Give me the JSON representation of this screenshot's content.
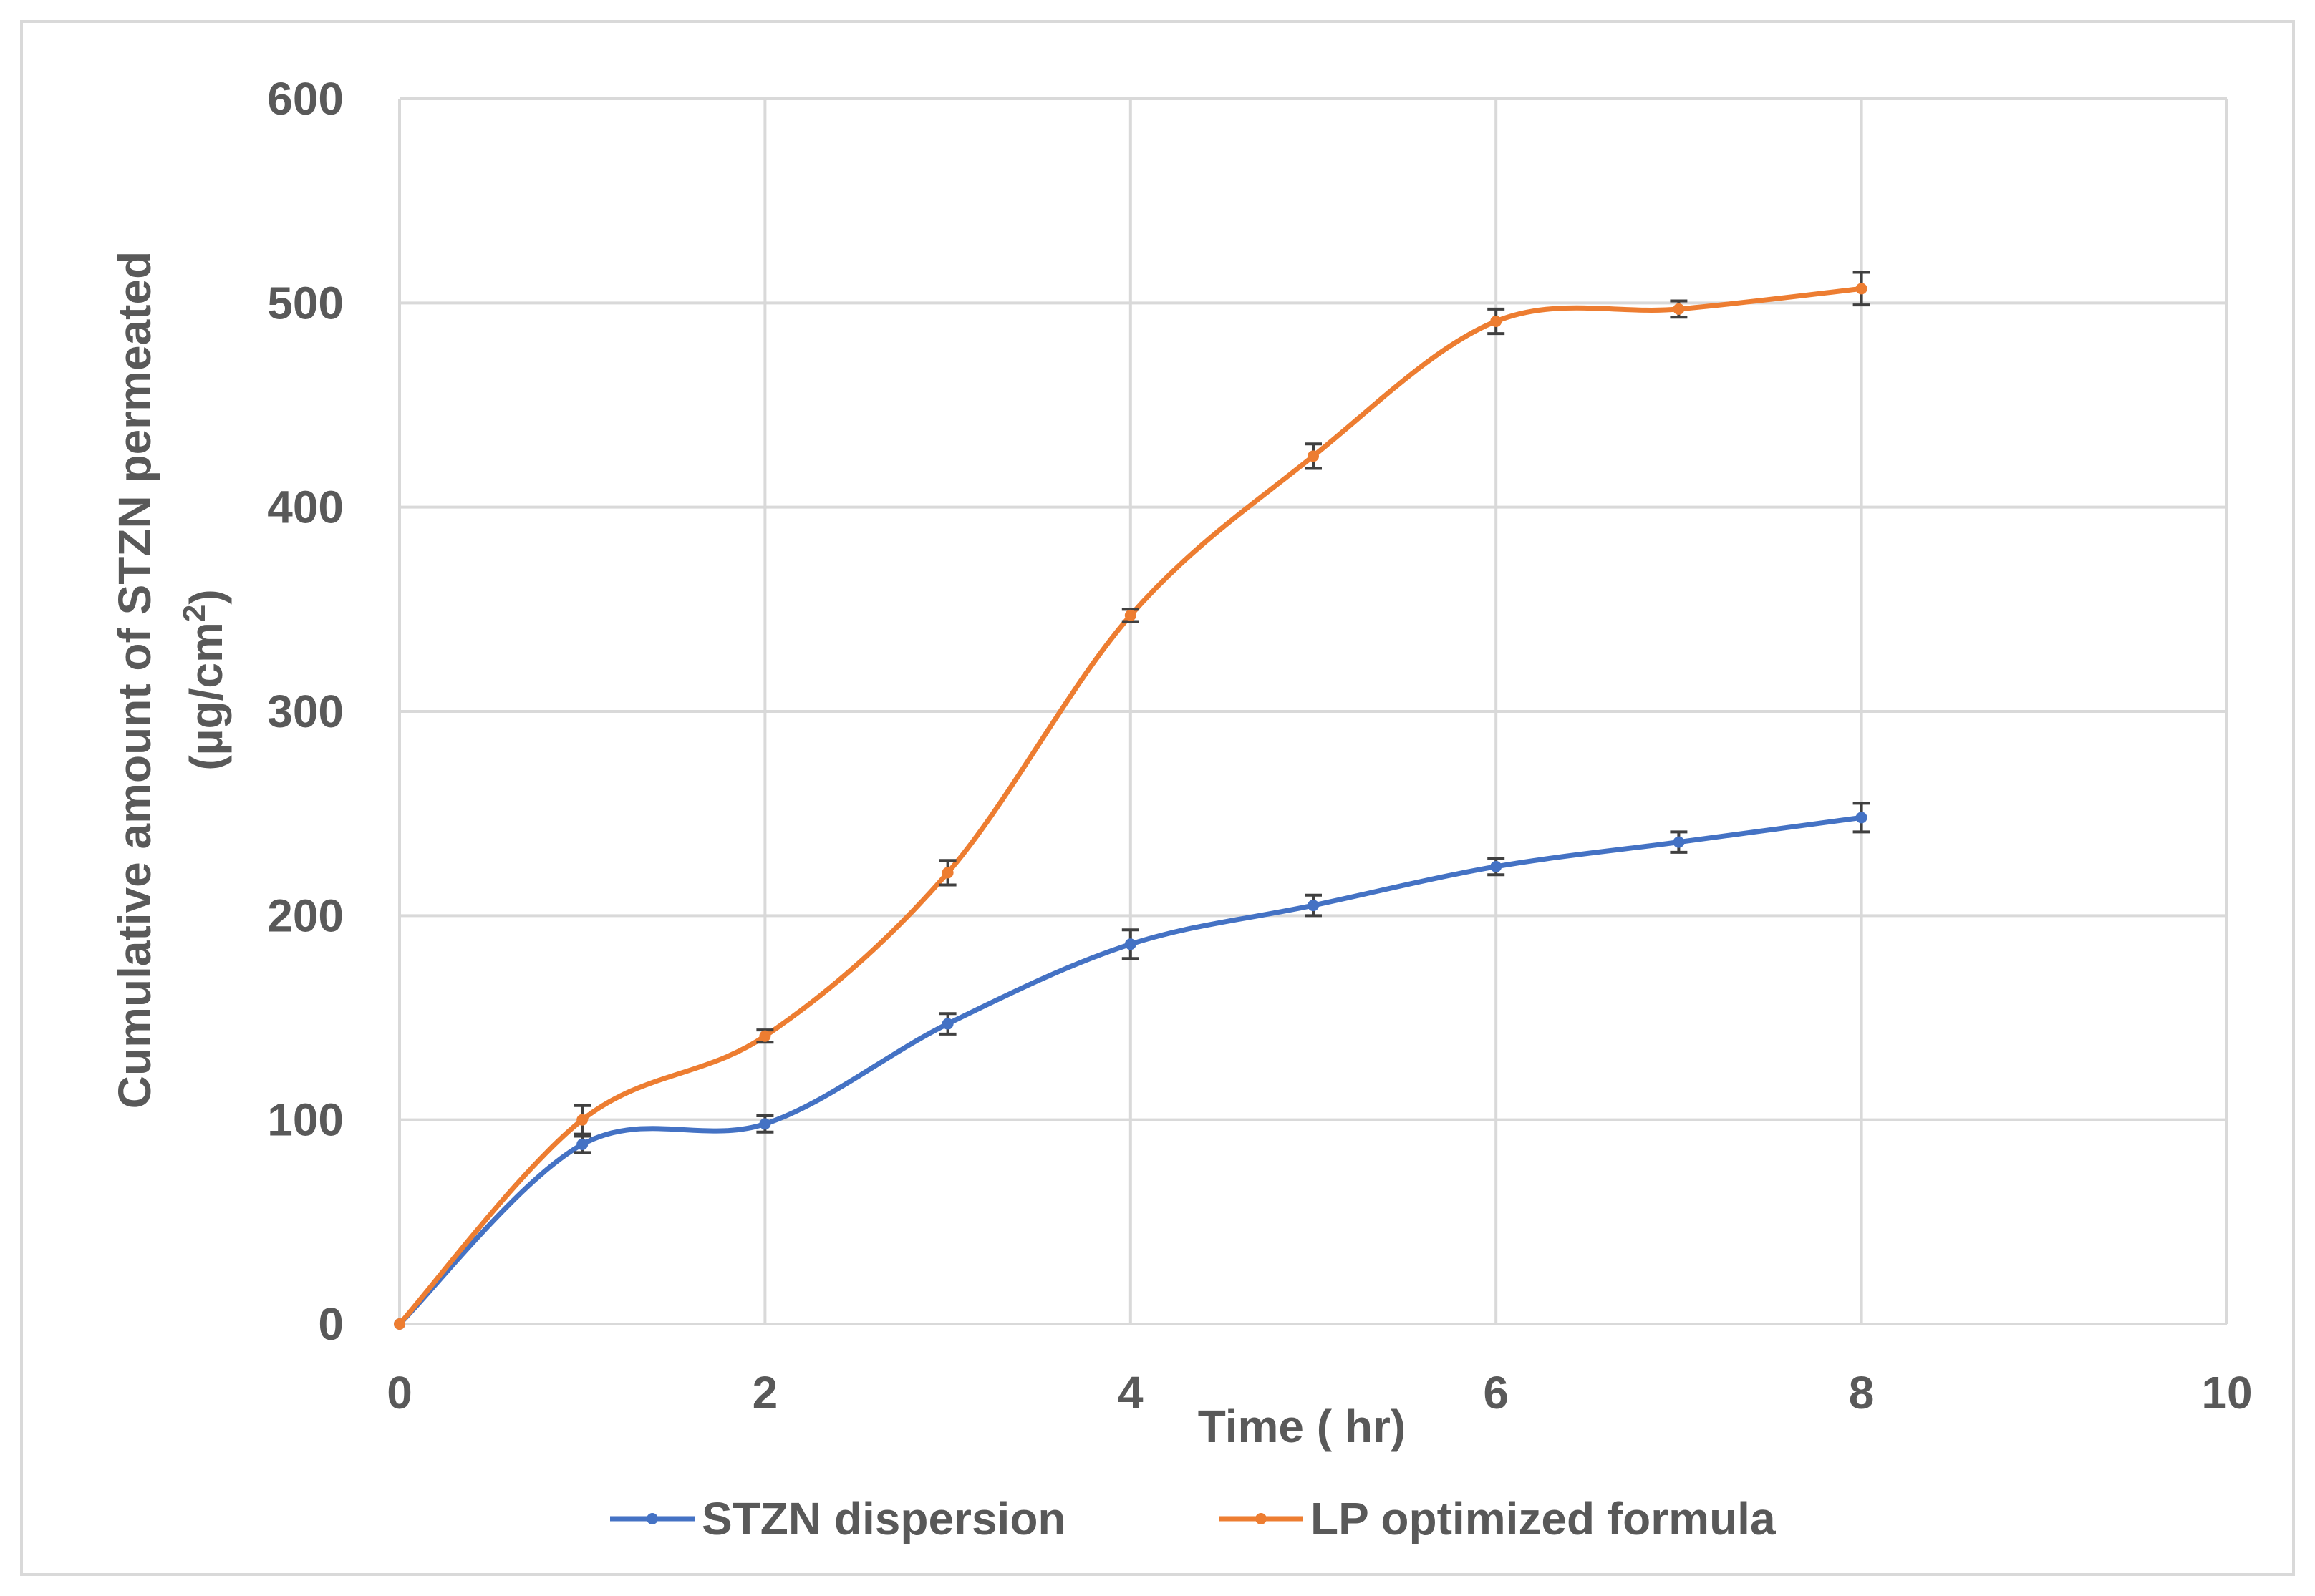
{
  "chart_data": {
    "type": "line",
    "title": "",
    "xlabel": "Time ( hr)",
    "ylabel_line1": "Cumulative  amount of STZN permeated",
    "ylabel_line2_prefix": "(µg/cm",
    "ylabel_line2_sup": "2",
    "ylabel_line2_suffix": ")",
    "xlim": [
      0,
      10
    ],
    "ylim": [
      0,
      600
    ],
    "xticks": [
      0,
      2,
      4,
      6,
      8,
      10
    ],
    "yticks": [
      0,
      100,
      200,
      300,
      400,
      500,
      600
    ],
    "xtick_labels": [
      "0",
      "2",
      "4",
      "6",
      "8",
      "10"
    ],
    "ytick_labels": [
      "0",
      "100",
      "200",
      "300",
      "400",
      "500",
      "600"
    ],
    "grid": true,
    "legend_position": "bottom",
    "series": [
      {
        "name": "STZN dispersion",
        "color": "#4472c4",
        "x": [
          0,
          1,
          2,
          3,
          4,
          5,
          6,
          7,
          8
        ],
        "y": [
          0,
          88,
          98,
          147,
          186,
          205,
          224,
          236,
          248
        ],
        "err": [
          0,
          4,
          4,
          5,
          7,
          5,
          4,
          5,
          7
        ]
      },
      {
        "name": "LP optimized formula",
        "color": "#ed7d31",
        "x": [
          0,
          1,
          2,
          3,
          4,
          5,
          6,
          7,
          8
        ],
        "y": [
          0,
          100,
          141,
          221,
          347,
          425,
          491,
          497,
          507
        ],
        "err": [
          0,
          7,
          3,
          6,
          3,
          6,
          6,
          4,
          8
        ]
      }
    ]
  }
}
